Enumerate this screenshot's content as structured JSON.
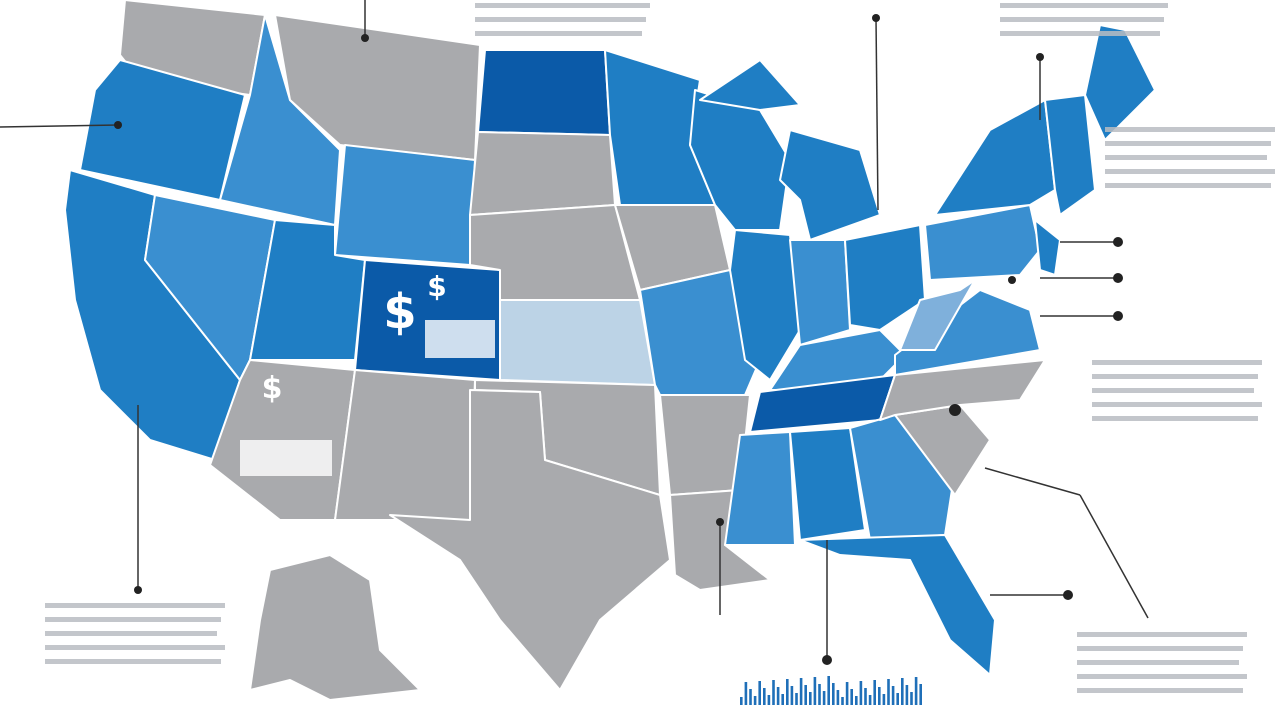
{
  "map": {
    "icons": [
      "$",
      "$",
      "$"
    ]
  }
}
